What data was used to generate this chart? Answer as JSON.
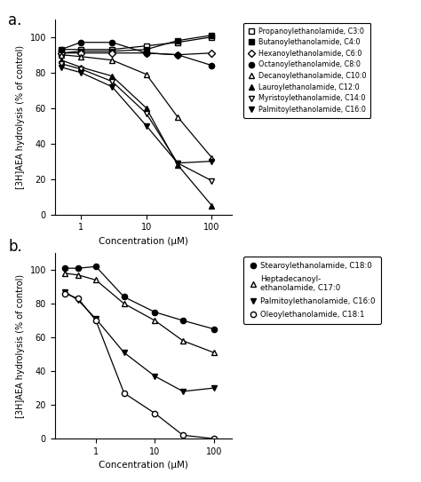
{
  "panel_a": {
    "series": [
      {
        "label": "Propanoylethanolamide, C3:0",
        "marker": "s",
        "fillstyle": "none",
        "x": [
          0.5,
          1,
          3,
          10,
          30,
          100
        ],
        "y": [
          93,
          93,
          93,
          95,
          97,
          100
        ]
      },
      {
        "label": "Butanoylethanolamide, C4:0",
        "marker": "s",
        "fillstyle": "full",
        "x": [
          0.5,
          1,
          3,
          10,
          30,
          100
        ],
        "y": [
          91,
          92,
          92,
          93,
          98,
          101
        ]
      },
      {
        "label": "Hexanoylethanolamide, C6:0",
        "marker": "D",
        "fillstyle": "none",
        "x": [
          0.5,
          1,
          3,
          10,
          30,
          100
        ],
        "y": [
          91,
          91,
          91,
          91,
          90,
          91
        ]
      },
      {
        "label": "Octanoylethanolamide, C8:0",
        "marker": "o",
        "fillstyle": "full",
        "x": [
          0.5,
          1,
          3,
          10,
          30,
          100
        ],
        "y": [
          93,
          97,
          97,
          91,
          90,
          84
        ]
      },
      {
        "label": "Decanoylethanolamide, C10:0",
        "marker": "^",
        "fillstyle": "none",
        "x": [
          0.5,
          1,
          3,
          10,
          30,
          100
        ],
        "y": [
          90,
          89,
          87,
          79,
          55,
          32
        ]
      },
      {
        "label": "Lauroylethanolamide, C12:0",
        "marker": "^",
        "fillstyle": "full",
        "x": [
          0.5,
          1,
          3,
          10,
          30,
          100
        ],
        "y": [
          87,
          83,
          78,
          60,
          28,
          5
        ]
      },
      {
        "label": "Myristoylethanolamide, C14:0",
        "marker": "v",
        "fillstyle": "none",
        "x": [
          0.5,
          1,
          3,
          10,
          30,
          100
        ],
        "y": [
          85,
          82,
          75,
          57,
          29,
          19
        ]
      },
      {
        "label": "Palmitoylethanolamide, C16:0",
        "marker": "v",
        "fillstyle": "full",
        "x": [
          0.5,
          1,
          3,
          10,
          30,
          100
        ],
        "y": [
          83,
          80,
          72,
          50,
          29,
          30
        ]
      }
    ],
    "xlabel": "Concentration (μM)",
    "ylabel": "[3H]AEA hydrolysis (% of control)",
    "ylim": [
      0,
      110
    ],
    "yticks": [
      0,
      20,
      40,
      60,
      80,
      100
    ]
  },
  "panel_b": {
    "series": [
      {
        "label": "Stearoylethanolamide, C18:0",
        "marker": "o",
        "fillstyle": "full",
        "x": [
          0.3,
          0.5,
          1,
          3,
          10,
          30,
          100
        ],
        "y": [
          101,
          101,
          102,
          84,
          75,
          70,
          65
        ]
      },
      {
        "label": "Heptadecanoyl-\nethanolamide, C17:0",
        "marker": "^",
        "fillstyle": "none",
        "x": [
          0.3,
          0.5,
          1,
          3,
          10,
          30,
          100
        ],
        "y": [
          98,
          97,
          94,
          80,
          70,
          58,
          51
        ]
      },
      {
        "label": "Palmitoylethanolamide, C16:0",
        "marker": "v",
        "fillstyle": "full",
        "x": [
          0.3,
          0.5,
          1,
          3,
          10,
          30,
          100
        ],
        "y": [
          87,
          82,
          71,
          51,
          37,
          28,
          30
        ]
      },
      {
        "label": "Oleoylethanolamide, C18:1",
        "marker": "o",
        "fillstyle": "none",
        "x": [
          0.3,
          0.5,
          1,
          3,
          10,
          30,
          100
        ],
        "y": [
          86,
          83,
          70,
          27,
          15,
          2,
          0
        ]
      }
    ],
    "xlabel": "Concentration (μM)",
    "ylabel": "[3H]AEA hydrolysis (% of control)",
    "ylim": [
      0,
      110
    ],
    "yticks": [
      0,
      20,
      40,
      60,
      80,
      100
    ]
  },
  "legend_a_entries": [
    {
      "marker": "s",
      "fillstyle": "none",
      "label": "Propanoylethanolamide, C3:0"
    },
    {
      "marker": "s",
      "fillstyle": "full",
      "label": "Butanoylethanolamide, C4:0"
    },
    {
      "marker": "D",
      "fillstyle": "none",
      "label": "Hexanoylethanolamide, C6:0"
    },
    {
      "marker": "o",
      "fillstyle": "full",
      "label": "Octanoylethanolamide, C8:0"
    },
    {
      "marker": "^",
      "fillstyle": "none",
      "label": "Decanoylethanolamide, C10:0"
    },
    {
      "marker": "^",
      "fillstyle": "full",
      "label": "Lauroylethanolamide, C12:0"
    },
    {
      "marker": "v",
      "fillstyle": "none",
      "label": "Myristoylethanolamide, C14:0"
    },
    {
      "marker": "v",
      "fillstyle": "full",
      "label": "Palmitoylethanolamide, C16:0"
    }
  ],
  "legend_b_entries": [
    {
      "marker": "o",
      "fillstyle": "full",
      "label": "Stearoylethanolamide, C18:0"
    },
    {
      "marker": "^",
      "fillstyle": "none",
      "label": "Heptadecanoyl-\nethanolamide, C17:0"
    },
    {
      "marker": "v",
      "fillstyle": "full",
      "label": "Palmitoylethanolamide, C16:0"
    },
    {
      "marker": "o",
      "fillstyle": "none",
      "label": "Oleoylethanolamide, C18:1"
    }
  ]
}
